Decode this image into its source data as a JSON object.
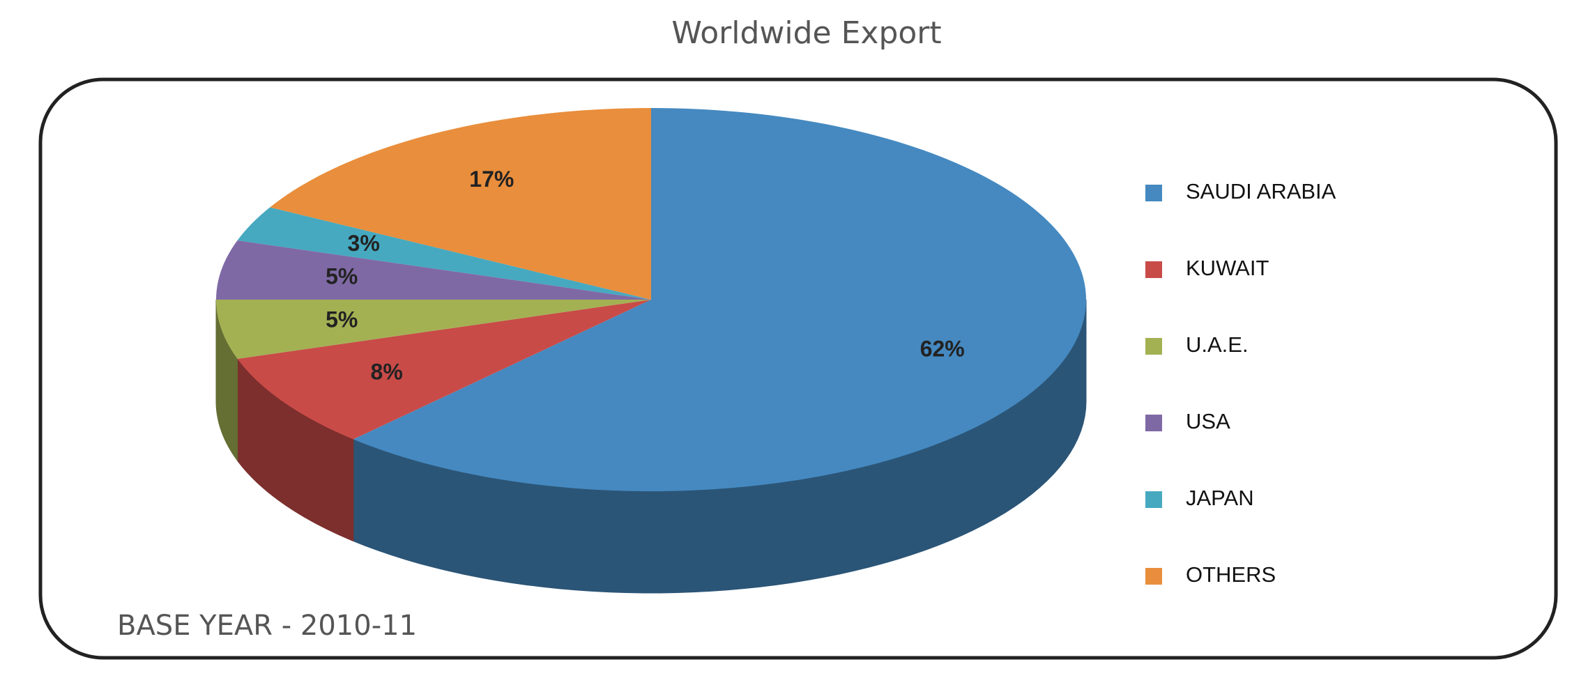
{
  "chart_data": {
    "type": "pie",
    "title": "Worldwide Export",
    "annotation": "BASE YEAR - 2010-11",
    "categories": [
      "SAUDI ARABIA",
      "KUWAIT",
      "U.A.E.",
      "USA",
      "JAPAN",
      "OTHERS"
    ],
    "values": [
      62,
      8,
      5,
      5,
      3,
      17
    ],
    "value_labels": [
      "62%",
      "8%",
      "5%",
      "5%",
      "3%",
      "17%"
    ],
    "colors": [
      "#4589c0",
      "#c84b48",
      "#a3b153",
      "#7f69a5",
      "#46a9c0",
      "#e98e3c"
    ],
    "legend": "right"
  }
}
